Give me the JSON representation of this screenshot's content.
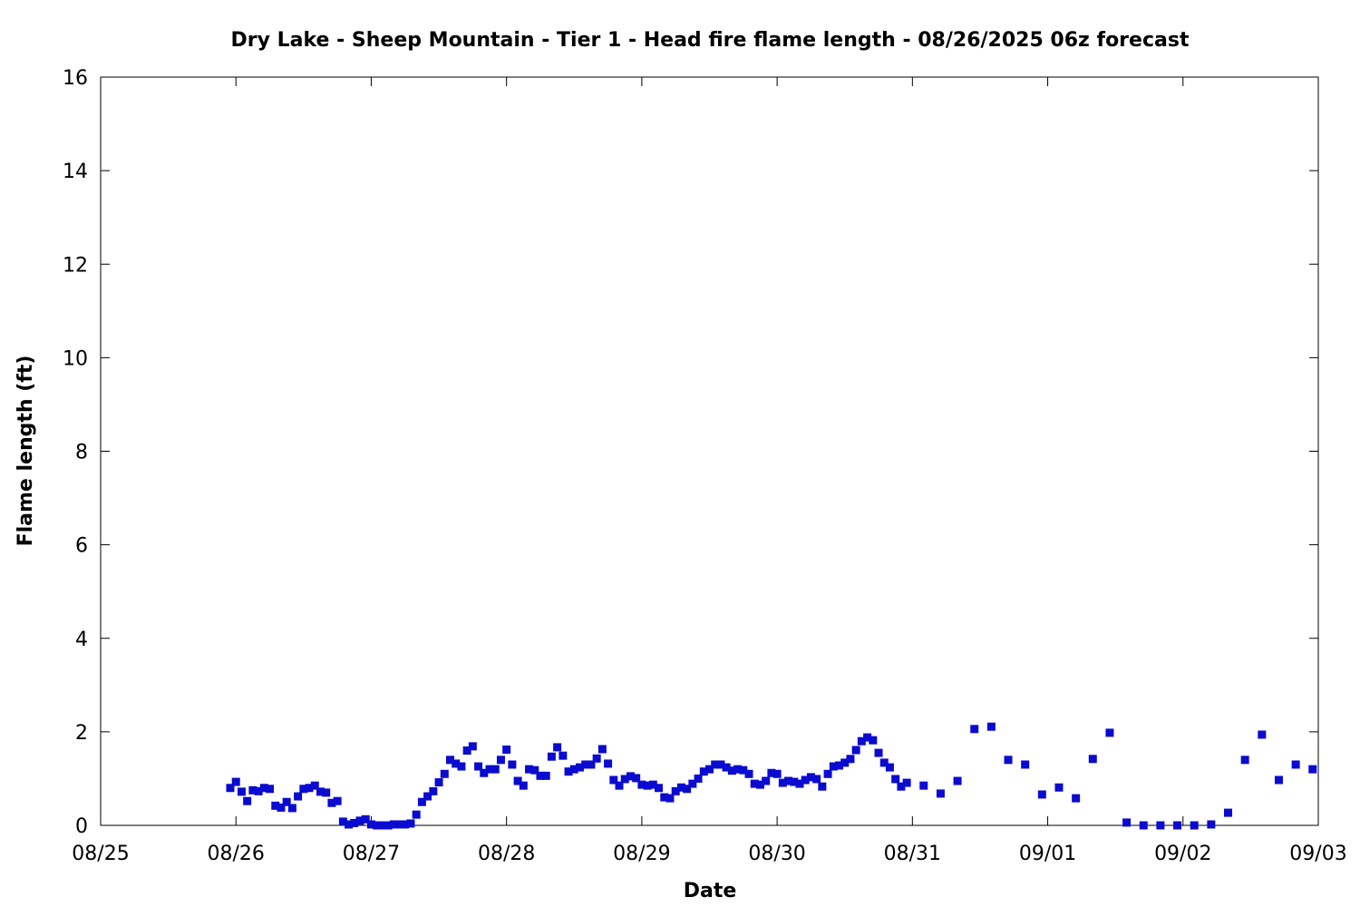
{
  "chart_data": {
    "type": "scatter",
    "title": "Dry Lake - Sheep Mountain - Tier 1 - Head fire flame length - 08/26/2025 06z forecast",
    "x_label": "Date",
    "y_label": "Flame length (ft)",
    "series": [
      {
        "color": "#0a0ad0",
        "x": [
          0.9583,
          1.0,
          1.0417,
          1.0833,
          1.125,
          1.1667,
          1.2083,
          1.25,
          1.2917,
          1.3333,
          1.375,
          1.4167,
          1.4583,
          1.5,
          1.5417,
          1.5833,
          1.625,
          1.6667,
          1.7083,
          1.75,
          1.7917,
          1.8333,
          1.875,
          1.9167,
          1.9583,
          2.0,
          2.0417,
          2.0833,
          2.125,
          2.1667,
          2.2083,
          2.25,
          2.2917,
          2.3333,
          2.375,
          2.4167,
          2.4583,
          2.5,
          2.5417,
          2.5833,
          2.625,
          2.6667,
          2.7083,
          2.75,
          2.7917,
          2.8333,
          2.875,
          2.9167,
          2.9583,
          3.0,
          3.0417,
          3.0833,
          3.125,
          3.1667,
          3.2083,
          3.25,
          3.2917,
          3.3333,
          3.375,
          3.4167,
          3.4583,
          3.5,
          3.5417,
          3.5833,
          3.625,
          3.6667,
          3.7083,
          3.75,
          3.7917,
          3.8333,
          3.875,
          3.9167,
          3.9583,
          4.0,
          4.0417,
          4.0833,
          4.125,
          4.1667,
          4.2083,
          4.25,
          4.2917,
          4.3333,
          4.375,
          4.4167,
          4.4583,
          4.5,
          4.5417,
          4.5833,
          4.625,
          4.6667,
          4.7083,
          4.75,
          4.7917,
          4.8333,
          4.875,
          4.9167,
          4.9583,
          5.0,
          5.0417,
          5.0833,
          5.125,
          5.1667,
          5.2083,
          5.25,
          5.2917,
          5.3333,
          5.375,
          5.4167,
          5.4583,
          5.5,
          5.5417,
          5.5833,
          5.625,
          5.6667,
          5.7083,
          5.75,
          5.7917,
          5.8333,
          5.875,
          5.9167,
          5.9583,
          6.0833,
          6.2083,
          6.3333,
          6.4583,
          6.5833,
          6.7083,
          6.8333,
          6.9583,
          7.0833,
          7.2083,
          7.3333,
          7.4583,
          7.5833,
          7.7083,
          7.8333,
          7.9583,
          8.0833,
          8.2083,
          8.3333,
          8.4583,
          8.5833,
          8.7083,
          8.8333,
          8.9583
        ],
        "values": [
          0.8,
          0.93,
          0.72,
          0.52,
          0.75,
          0.73,
          0.8,
          0.78,
          0.42,
          0.38,
          0.5,
          0.37,
          0.62,
          0.78,
          0.8,
          0.85,
          0.72,
          0.7,
          0.48,
          0.52,
          0.08,
          0.02,
          0.05,
          0.1,
          0.13,
          0.02,
          0,
          0,
          0,
          0.02,
          0.02,
          0.02,
          0.04,
          0.23,
          0.5,
          0.62,
          0.73,
          0.92,
          1.1,
          1.4,
          1.32,
          1.26,
          1.6,
          1.69,
          1.26,
          1.12,
          1.2,
          1.2,
          1.4,
          1.62,
          1.3,
          0.95,
          0.85,
          1.2,
          1.18,
          1.06,
          1.06,
          1.47,
          1.67,
          1.49,
          1.15,
          1.2,
          1.24,
          1.3,
          1.3,
          1.43,
          1.63,
          1.32,
          0.97,
          0.85,
          0.99,
          1.05,
          1.01,
          0.87,
          0.85,
          0.87,
          0.8,
          0.6,
          0.58,
          0.73,
          0.81,
          0.78,
          0.89,
          1.0,
          1.15,
          1.2,
          1.3,
          1.3,
          1.24,
          1.17,
          1.2,
          1.18,
          1.1,
          0.89,
          0.87,
          0.95,
          1.12,
          1.1,
          0.91,
          0.95,
          0.93,
          0.89,
          0.97,
          1.03,
          0.99,
          0.83,
          1.1,
          1.26,
          1.28,
          1.34,
          1.42,
          1.61,
          1.8,
          1.88,
          1.82,
          1.55,
          1.34,
          1.24,
          0.99,
          0.83,
          0.91,
          0.85,
          0.68,
          0.95,
          2.06,
          2.11,
          1.4,
          1.3,
          0.66,
          0.81,
          0.58,
          1.42,
          1.98,
          0.06,
          0,
          0,
          0,
          0,
          0.02,
          0.27,
          1.4,
          1.94,
          0.97,
          1.3,
          1.2
        ]
      }
    ],
    "xlim": [
      0,
      9
    ],
    "xticks": [
      {
        "value": 0,
        "label": "08/25"
      },
      {
        "value": 1,
        "label": "08/26"
      },
      {
        "value": 2,
        "label": "08/27"
      },
      {
        "value": 3,
        "label": "08/28"
      },
      {
        "value": 4,
        "label": "08/29"
      },
      {
        "value": 5,
        "label": "08/30"
      },
      {
        "value": 6,
        "label": "08/31"
      },
      {
        "value": 7,
        "label": "09/01"
      },
      {
        "value": 8,
        "label": "09/02"
      },
      {
        "value": 9,
        "label": "09/03"
      }
    ],
    "ylim": [
      0,
      16
    ],
    "yticks": [
      0,
      2,
      4,
      6,
      8,
      10,
      12,
      14,
      16
    ],
    "grid": false
  }
}
